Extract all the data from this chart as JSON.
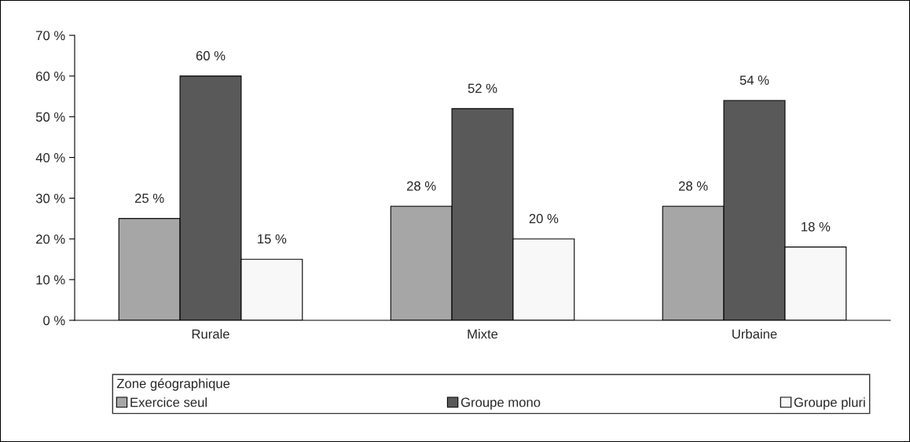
{
  "chart_data": {
    "type": "bar",
    "categories": [
      "Rurale",
      "Mixte",
      "Urbaine"
    ],
    "series": [
      {
        "name": "Exercice seul",
        "color": "#a6a6a6",
        "values": [
          25,
          28,
          28
        ],
        "value_labels": [
          "25 %",
          "28 %",
          "28 %"
        ]
      },
      {
        "name": "Groupe mono",
        "color": "#595959",
        "values": [
          60,
          52,
          54
        ],
        "value_labels": [
          "60 %",
          "52 %",
          "54 %"
        ]
      },
      {
        "name": "Groupe pluri",
        "color": "#f8f8f8",
        "values": [
          15,
          20,
          18
        ],
        "value_labels": [
          "15 %",
          "20 %",
          "18 %"
        ]
      }
    ],
    "legend_title": "Zone géographique",
    "legend": "bottom",
    "grid": false,
    "ylim": [
      0,
      70
    ],
    "yticks": [
      {
        "value": 0,
        "label": "0 %"
      },
      {
        "value": 10,
        "label": "10 %"
      },
      {
        "value": 20,
        "label": "20 %"
      },
      {
        "value": 30,
        "label": "30 %"
      },
      {
        "value": 40,
        "label": "40 %"
      },
      {
        "value": 50,
        "label": "50 %"
      },
      {
        "value": 60,
        "label": "60 %"
      },
      {
        "value": 70,
        "label": "70 %"
      }
    ]
  }
}
